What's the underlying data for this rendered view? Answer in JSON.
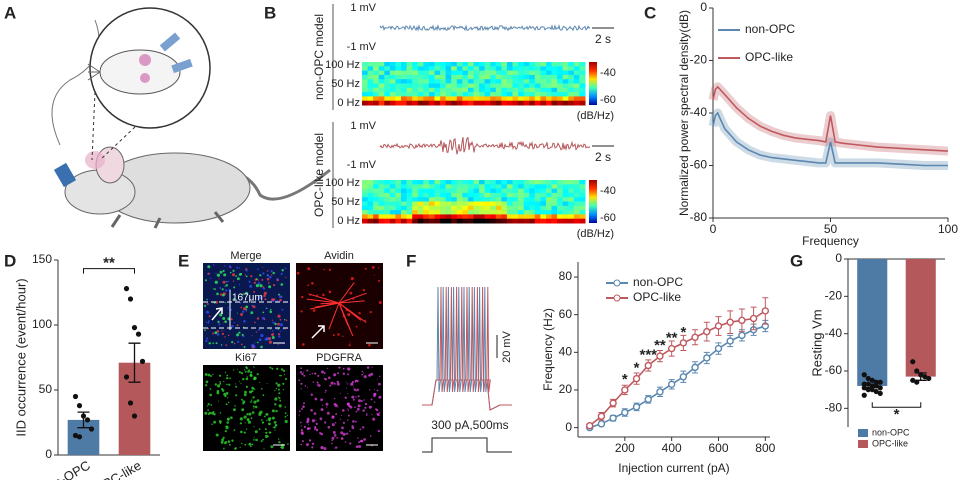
{
  "figure": {
    "panel_labels": [
      "A",
      "B",
      "C",
      "D",
      "E",
      "F",
      "G"
    ],
    "B": {
      "rows": [
        {
          "name": "non-OPC model",
          "scale_top": "1 mV",
          "scale_bottom": "-1 mV",
          "time_scale": "2 s",
          "freq_labels": [
            "100 Hz",
            "50 Hz",
            "0 Hz"
          ],
          "colorbar_labels": [
            "-40",
            "-60"
          ],
          "colorbar_unit": "(dB/Hz)"
        },
        {
          "name": "OPC-like model",
          "scale_top": "1 mV",
          "scale_bottom": "-1 mV",
          "time_scale": "2 s",
          "freq_labels": [
            "100 Hz",
            "50 Hz",
            "0 Hz"
          ],
          "colorbar_labels": [
            "-40",
            "-60"
          ],
          "colorbar_unit": "(dB/Hz)"
        }
      ]
    },
    "E": {
      "titles": [
        "Merge",
        "Avidin",
        "Ki67",
        "PDGFRA"
      ],
      "scale": "167μm"
    },
    "F": {
      "voltage_scale": "20 mV",
      "stimulus": "300 pA,500ms"
    }
  },
  "chart_data": [
    {
      "type": "line",
      "ylabel": "Normalized power spectral density(dB)",
      "xlabel": "Frequency",
      "x": [
        0,
        1,
        2,
        3,
        5,
        7,
        10,
        15,
        20,
        25,
        30,
        35,
        40,
        45,
        48,
        50,
        52,
        55,
        60,
        70,
        80,
        90,
        100
      ],
      "xlim": [
        0,
        100
      ],
      "xticks": [
        0,
        50,
        100
      ],
      "ylim": [
        -80,
        0
      ],
      "yticks": [
        0,
        -20,
        -40,
        -60,
        -80
      ],
      "legend": "upper right",
      "series": [
        {
          "name": "non-OPC",
          "color": "#5b87b0",
          "values": [
            -45,
            -41,
            -40,
            -42,
            -46,
            -48,
            -51,
            -54,
            -56,
            -57,
            -57.5,
            -58,
            -58.5,
            -59,
            -59,
            -51,
            -59,
            -59,
            -59,
            -59,
            -59.5,
            -60,
            -60
          ]
        },
        {
          "name": "OPC-like",
          "color": "#c0595f",
          "values": [
            -35,
            -31,
            -30,
            -31,
            -33,
            -35,
            -38,
            -42,
            -45,
            -47,
            -48.5,
            -49.5,
            -50,
            -50.5,
            -51,
            -41,
            -51,
            -51.5,
            -52,
            -53,
            -53.5,
            -54,
            -54.5
          ]
        }
      ]
    },
    {
      "type": "bar",
      "ylabel": "IID occurrence (event/hour)",
      "categories": [
        "non-OPC",
        "OPC-like"
      ],
      "values": [
        27,
        71
      ],
      "errors": [
        6,
        15
      ],
      "colors": [
        "#4e7aa6",
        "#b5585c"
      ],
      "points": [
        [
          45,
          38,
          30,
          27,
          20,
          15,
          14
        ],
        [
          128,
          120,
          98,
          93,
          72,
          60,
          40,
          30
        ]
      ],
      "ylim": [
        0,
        150
      ],
      "yticks": [
        0,
        50,
        100,
        150
      ],
      "significance": "**"
    },
    {
      "type": "line",
      "ylabel": "Frequency (Hz)",
      "xlabel": "Injection current (pA)",
      "x": [
        50,
        100,
        150,
        200,
        250,
        300,
        350,
        400,
        450,
        500,
        550,
        600,
        650,
        700,
        750,
        800
      ],
      "xlim": [
        0,
        820
      ],
      "xticks": [
        200,
        400,
        600,
        800
      ],
      "ylim": [
        -5,
        88
      ],
      "yticks": [
        0,
        20,
        40,
        60,
        80
      ],
      "legend": "upper left",
      "markers": true,
      "series": [
        {
          "name": "non-OPC",
          "color": "#5b87b0",
          "values": [
            0,
            2,
            5,
            8,
            11,
            15,
            19,
            23,
            27,
            32,
            37,
            42,
            46,
            49,
            52,
            54
          ],
          "errors": [
            1,
            1,
            1.5,
            2,
            2,
            2,
            2.5,
            2.5,
            3,
            3,
            3,
            3,
            3,
            3,
            3,
            3
          ]
        },
        {
          "name": "OPC-like",
          "color": "#c0595f",
          "values": [
            1,
            6,
            13,
            20,
            26,
            33,
            38,
            42,
            45,
            48,
            51,
            54,
            56,
            57,
            58,
            62
          ],
          "errors": [
            1,
            2,
            2,
            2.5,
            3,
            3,
            3,
            4,
            4,
            4,
            5,
            5,
            6,
            6,
            6,
            7
          ]
        }
      ],
      "significance": [
        {
          "x": 200,
          "label": "*"
        },
        {
          "x": 250,
          "label": "*"
        },
        {
          "x": 300,
          "label": "***"
        },
        {
          "x": 350,
          "label": "**"
        },
        {
          "x": 400,
          "label": "**"
        },
        {
          "x": 450,
          "label": "*"
        }
      ]
    },
    {
      "type": "bar",
      "ylabel": "Resting Vm",
      "categories": [
        "non-OPC",
        "OPC-like"
      ],
      "values": [
        -68,
        -63
      ],
      "errors": [
        0.8,
        2
      ],
      "colors": [
        "#4e7aa6",
        "#b5585c"
      ],
      "points": [
        [
          -62,
          -64,
          -65,
          -66,
          -66,
          -67,
          -67,
          -68,
          -68,
          -69,
          -69,
          -70,
          -70,
          -71,
          -72,
          -73
        ],
        [
          -55,
          -60,
          -62,
          -63,
          -64,
          -65,
          -66
        ]
      ],
      "ylim": [
        -90,
        0
      ],
      "yticks": [
        0,
        -20,
        -40,
        -60,
        -80
      ],
      "significance": "*",
      "legend": "lower left"
    }
  ]
}
